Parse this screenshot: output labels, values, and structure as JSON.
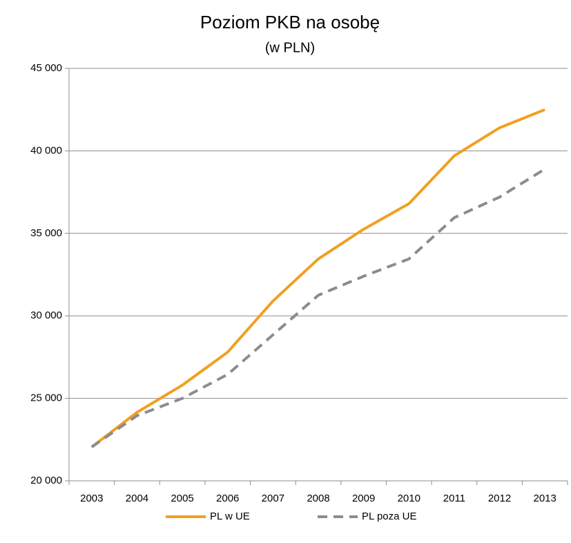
{
  "chart_data": {
    "type": "line",
    "title": "Poziom PKB na osobę",
    "subtitle": "(w PLN)",
    "categories": [
      "2003",
      "2004",
      "2005",
      "2006",
      "2007",
      "2008",
      "2009",
      "2010",
      "2011",
      "2012",
      "2013"
    ],
    "series": [
      {
        "name": "PL w UE",
        "color": "#f0a020",
        "dashed": false,
        "values": [
          22050,
          24150,
          25800,
          27800,
          30900,
          33450,
          35250,
          36800,
          39700,
          41400,
          42500
        ]
      },
      {
        "name": "PL poza UE",
        "color": "#8c8c8c",
        "dashed": true,
        "values": [
          22050,
          23950,
          25000,
          26450,
          28850,
          31250,
          32400,
          33450,
          35950,
          37200,
          38900
        ]
      }
    ],
    "ylim": [
      20000,
      45000
    ],
    "yticks": [
      {
        "value": 20000,
        "label": "20 000"
      },
      {
        "value": 25000,
        "label": "25 000"
      },
      {
        "value": 30000,
        "label": "30 000"
      },
      {
        "value": 35000,
        "label": "35 000"
      },
      {
        "value": 40000,
        "label": "40 000"
      },
      {
        "value": 45000,
        "label": "45 000"
      }
    ],
    "grid": true,
    "legend": "bottom"
  }
}
